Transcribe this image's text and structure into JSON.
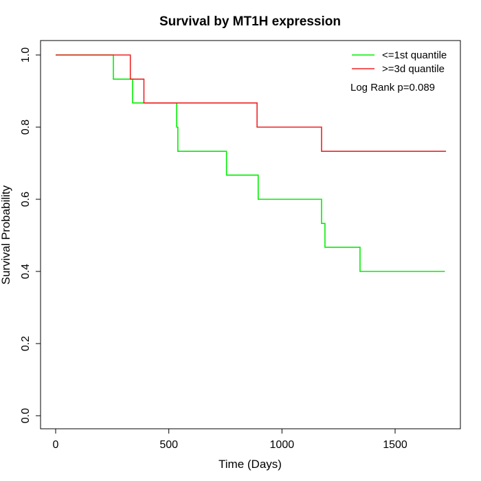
{
  "chart_data": {
    "type": "line",
    "step": true,
    "title": "Survival by MT1H expression",
    "xlabel": "Time (Days)",
    "ylabel": "Survival Probability",
    "xlim": [
      0,
      1750
    ],
    "ylim": [
      0,
      1.0
    ],
    "xticks": [
      0,
      500,
      1000,
      1500
    ],
    "xtick_labels": [
      "0",
      "500",
      "1000",
      "1500"
    ],
    "yticks": [
      0.0,
      0.2,
      0.4,
      0.6,
      0.8,
      1.0
    ],
    "ytick_labels": [
      "0.0",
      "0.2",
      "0.4",
      "0.6",
      "0.8",
      "1.0"
    ],
    "grid": false,
    "legend_position": "top-right",
    "annotation": "Log Rank p=0.089",
    "series": [
      {
        "name": "<=1st quantile",
        "color": "#00ee00",
        "x": [
          0,
          255,
          340,
          535,
          540,
          755,
          895,
          1175,
          1190,
          1345,
          1720
        ],
        "y": [
          1.0,
          0.933,
          0.867,
          0.8,
          0.733,
          0.667,
          0.6,
          0.533,
          0.467,
          0.4,
          0.4
        ]
      },
      {
        "name": ">=3d quantile",
        "color": "#ee2222",
        "x": [
          0,
          330,
          390,
          890,
          1175,
          1725
        ],
        "y": [
          1.0,
          0.933,
          0.867,
          0.8,
          0.733,
          0.733
        ]
      }
    ]
  }
}
